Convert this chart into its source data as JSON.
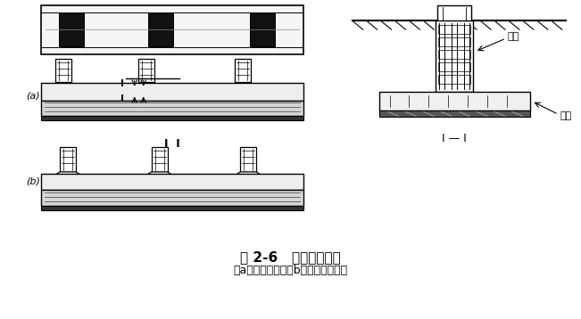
{
  "title1": "图 2-6   柱下条形基础",
  "title2": "（a）等截面的；（b）柱位处加腋的",
  "label_a": "(a)",
  "label_b": "(b)",
  "label_I_I": "I — I",
  "label_jiliang": "肋梁",
  "label_yiban": "翼板",
  "bg_color": "#ffffff",
  "lc": "#000000"
}
